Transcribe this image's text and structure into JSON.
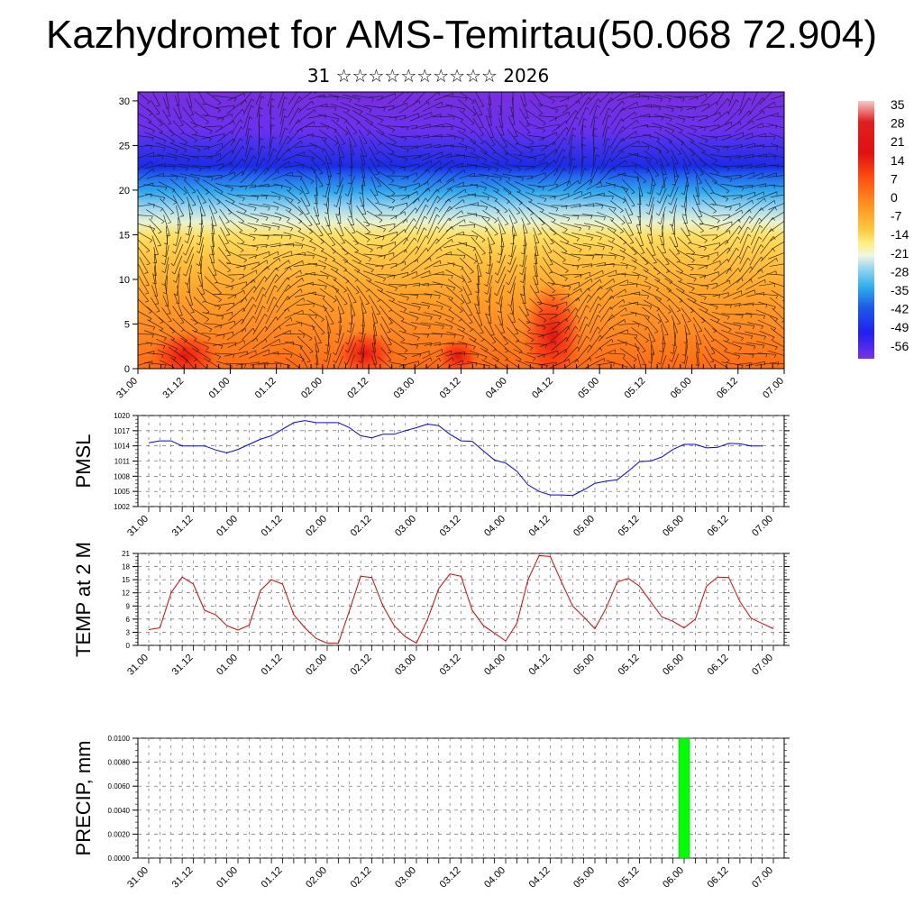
{
  "title": "Kazhydromet for AMS-Temirtau(50.068 72.904)",
  "subtitle": "31 ☆☆☆☆☆☆☆☆☆☆ 2026",
  "chart_data": [
    {
      "type": "heatmap",
      "name": "temperature-wind-cross-section",
      "xticks": [
        "31.00",
        "31.12",
        "01.00",
        "01.12",
        "02.00",
        "02.12",
        "03.00",
        "03.12",
        "04.00",
        "04.12",
        "05.00",
        "05.12",
        "06.00",
        "06.12",
        "07.00"
      ],
      "ylim": [
        0,
        31
      ],
      "yticks": [
        0,
        5,
        10,
        15,
        20,
        25,
        30
      ],
      "colorbar": {
        "labels": [
          "35",
          "28",
          "21",
          "14",
          "7",
          "0",
          "-7",
          "-14",
          "-21",
          "-28",
          "-35",
          "-42",
          "-49",
          "-56"
        ],
        "range": [
          -60,
          38
        ]
      }
    },
    {
      "type": "line",
      "name": "PMSL",
      "ylabel": "PMSL",
      "ylim": [
        1002,
        1020
      ],
      "yticks": [
        "1002",
        "1005",
        "1008",
        "1011",
        "1014",
        "1017",
        "1020"
      ],
      "xticks": [
        "31.00",
        "31.12",
        "01.00",
        "01.12",
        "02.00",
        "02.12",
        "03.00",
        "03.12",
        "04.00",
        "04.12",
        "05.00",
        "05.12",
        "06.00",
        "06.12",
        "07.00"
      ],
      "color": "#0000ff",
      "values": [
        1014.6,
        1015,
        1015,
        1014,
        1014,
        1014,
        1013.2,
        1012.6,
        1013.3,
        1014.3,
        1015.3,
        1016,
        1017.3,
        1018.6,
        1019,
        1018.6,
        1018.6,
        1018.6,
        1017.6,
        1016,
        1015.6,
        1016.3,
        1016.3,
        1017,
        1017.6,
        1018.3,
        1018,
        1016.3,
        1015,
        1014.9,
        1013,
        1011.2,
        1010.6,
        1009,
        1006.3,
        1005,
        1004.3,
        1004.3,
        1004.2,
        1005.3,
        1006.6,
        1007,
        1007.3,
        1009,
        1010.9,
        1011,
        1011.8,
        1013.3,
        1014.3,
        1014.3,
        1013.6,
        1013.7,
        1014.5,
        1014.4,
        1014,
        1014
      ]
    },
    {
      "type": "line",
      "name": "TEMP at 2 M",
      "ylabel": "TEMP at 2 M",
      "ylim": [
        0,
        21
      ],
      "yticks": [
        "0",
        "3",
        "6",
        "9",
        "12",
        "15",
        "18",
        "21"
      ],
      "xticks": [
        "31.00",
        "31.12",
        "01.00",
        "01.12",
        "02.00",
        "02.12",
        "03.00",
        "03.12",
        "04.00",
        "04.12",
        "05.00",
        "05.12",
        "06.00",
        "06.12",
        "07.00"
      ],
      "color": "#dd0000",
      "values": [
        3.6,
        4,
        12,
        15.6,
        14,
        8,
        7,
        4.5,
        3.5,
        4.6,
        12.5,
        15,
        14,
        7,
        4,
        1.6,
        0.5,
        0.5,
        8,
        15.8,
        15.5,
        9,
        4.5,
        2,
        0.5,
        6,
        13,
        16.3,
        15.8,
        8,
        4.5,
        2.8,
        1,
        5,
        15,
        20.5,
        20.3,
        14.5,
        9,
        6.5,
        3.8,
        8.5,
        14.5,
        15.3,
        13.5,
        10,
        6.5,
        5.5,
        4,
        6,
        13.5,
        15.6,
        15.5,
        10,
        6.2,
        5,
        3.8
      ]
    },
    {
      "type": "bar",
      "name": "PRECIP, mm",
      "ylabel": "PRECIP, mm",
      "ylim": [
        0,
        0.01
      ],
      "yticks": [
        "0.0000",
        "0.0020",
        "0.0040",
        "0.0060",
        "0.0080",
        "0.0100"
      ],
      "xticks": [
        "31.00",
        "31.12",
        "01.00",
        "01.12",
        "02.00",
        "02.12",
        "03.00",
        "03.12",
        "04.00",
        "04.12",
        "05.00",
        "05.12",
        "06.00",
        "06.12",
        "07.00"
      ],
      "color": "#00ff00",
      "bars": [
        {
          "x": 48,
          "value": 0.01
        }
      ]
    }
  ]
}
